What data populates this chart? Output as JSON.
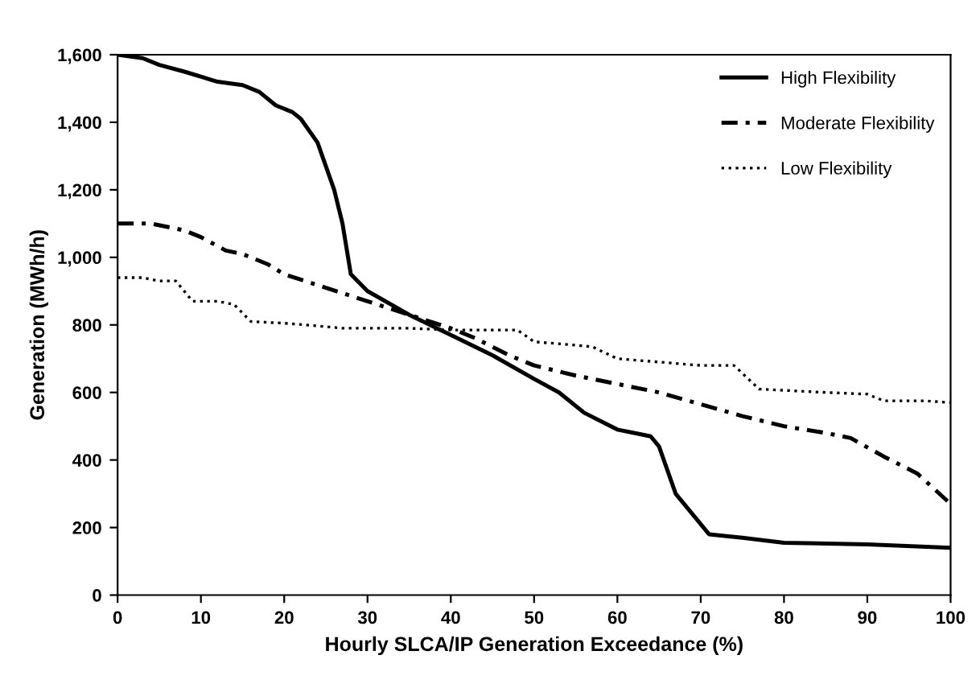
{
  "chart_data": {
    "type": "line",
    "xlabel": "Hourly SLCA/IP Generation Exceedance (%)",
    "ylabel": "Generation (MWh/h)",
    "xlim": [
      0,
      100
    ],
    "xticks": [
      0,
      10,
      20,
      30,
      40,
      50,
      60,
      70,
      80,
      90,
      100
    ],
    "ylim": [
      0,
      1600
    ],
    "yticks": [
      0,
      200,
      400,
      600,
      800,
      {
        "value": 1000,
        "label": "1,000"
      },
      {
        "value": 1200,
        "label": "1,200"
      },
      {
        "value": 1400,
        "label": "1,400"
      },
      {
        "value": 1600,
        "label": "1,600"
      }
    ],
    "grid": false,
    "legend": "top right",
    "marker": "none",
    "series": [
      {
        "name": "High Flexibility",
        "color": "#000000",
        "line_style": "solid",
        "x": [
          0,
          3,
          5,
          8,
          12,
          15,
          17,
          19,
          21,
          22,
          24,
          26,
          27,
          28,
          30,
          35,
          40,
          45,
          50,
          53,
          56,
          60,
          62,
          64,
          65,
          67,
          71,
          75,
          80,
          90,
          100
        ],
        "values": [
          1600,
          1590,
          1570,
          1550,
          1520,
          1510,
          1490,
          1450,
          1430,
          1410,
          1340,
          1200,
          1100,
          950,
          900,
          830,
          770,
          710,
          640,
          600,
          540,
          490,
          480,
          470,
          440,
          300,
          180,
          170,
          155,
          150,
          140
        ]
      },
      {
        "name": "Moderate Flexibility",
        "color": "#000000",
        "line_style": "dashed",
        "x": [
          0,
          4,
          8,
          10,
          13,
          15,
          18,
          20,
          25,
          30,
          35,
          40,
          43,
          47,
          50,
          55,
          60,
          65,
          70,
          75,
          80,
          85,
          88,
          92,
          96,
          100
        ],
        "values": [
          1100,
          1100,
          1080,
          1060,
          1020,
          1010,
          980,
          950,
          910,
          870,
          830,
          790,
          760,
          710,
          680,
          650,
          625,
          600,
          565,
          530,
          500,
          480,
          465,
          410,
          360,
          270
        ]
      },
      {
        "name": "Low Flexibility",
        "color": "#000000",
        "line_style": "dotted",
        "x": [
          0,
          3,
          5,
          7,
          9,
          12,
          14,
          16,
          20,
          25,
          27,
          35,
          40,
          48,
          50,
          55,
          57,
          60,
          65,
          70,
          74,
          77,
          85,
          90,
          92,
          97,
          100
        ],
        "values": [
          940,
          940,
          930,
          930,
          870,
          870,
          860,
          810,
          805,
          795,
          790,
          790,
          785,
          785,
          750,
          740,
          735,
          700,
          690,
          680,
          680,
          610,
          600,
          595,
          575,
          575,
          570
        ]
      }
    ]
  }
}
